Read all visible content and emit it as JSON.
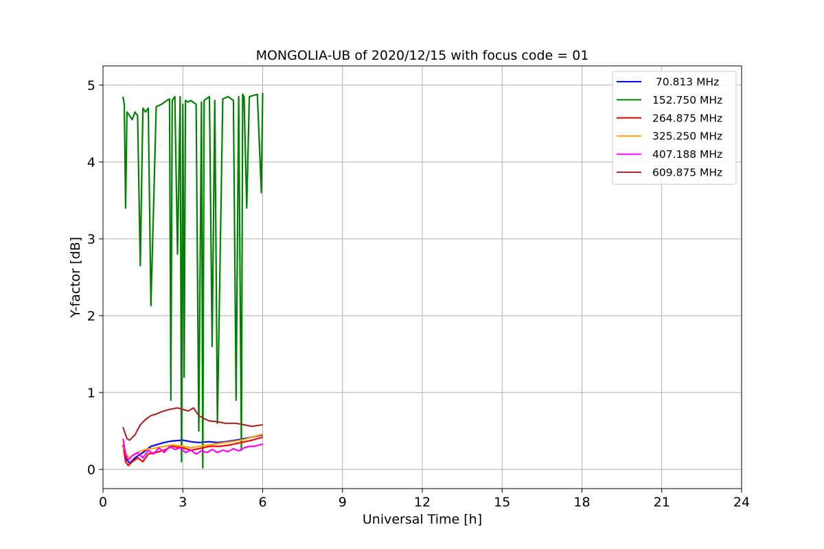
{
  "chart_data": {
    "type": "line",
    "title": "MONGOLIA-UB of 2020/12/15 with focus code = 01",
    "xlabel": "Universal Time [h]",
    "ylabel": "Y-factor [dB]",
    "xlim": [
      0,
      24
    ],
    "ylim": [
      -0.25,
      5.25
    ],
    "xticks": [
      0,
      3,
      6,
      9,
      12,
      15,
      18,
      21,
      24
    ],
    "yticks": [
      0,
      1,
      2,
      3,
      4,
      5
    ],
    "grid": true,
    "legend_position": "top-right",
    "series": [
      {
        "name": " 70.813 MHz",
        "color": "#0000ff",
        "x": [
          0.75,
          0.9,
          1.0,
          1.2,
          1.5,
          1.8,
          2.0,
          2.3,
          2.6,
          3.0,
          3.3,
          3.6,
          4.0,
          4.3,
          4.6,
          5.0,
          5.3,
          5.6,
          6.0
        ],
        "y": [
          0.3,
          0.12,
          0.08,
          0.15,
          0.22,
          0.3,
          0.32,
          0.35,
          0.37,
          0.38,
          0.36,
          0.35,
          0.36,
          0.35,
          0.36,
          0.38,
          0.4,
          0.42,
          0.45
        ]
      },
      {
        "name": "152.750 MHz",
        "color": "#008000",
        "x": [
          0.75,
          0.8,
          0.85,
          0.9,
          1.0,
          1.1,
          1.2,
          1.3,
          1.4,
          1.5,
          1.6,
          1.7,
          1.8,
          2.0,
          2.2,
          2.4,
          2.5,
          2.55,
          2.6,
          2.7,
          2.8,
          2.9,
          2.95,
          3.0,
          3.05,
          3.1,
          3.2,
          3.3,
          3.5,
          3.6,
          3.7,
          3.75,
          3.8,
          4.0,
          4.1,
          4.2,
          4.3,
          4.5,
          4.7,
          4.9,
          5.0,
          5.1,
          5.2,
          5.25,
          5.3,
          5.4,
          5.5,
          5.6,
          5.8,
          5.95,
          6.0
        ],
        "y": [
          4.85,
          4.75,
          3.4,
          4.65,
          4.6,
          4.55,
          4.65,
          4.6,
          2.65,
          4.7,
          4.65,
          4.7,
          2.13,
          4.72,
          4.75,
          4.8,
          4.82,
          0.9,
          4.8,
          4.85,
          2.8,
          4.85,
          0.1,
          4.75,
          1.2,
          4.8,
          4.78,
          4.8,
          4.75,
          0.5,
          4.78,
          0.02,
          4.8,
          4.85,
          1.6,
          4.8,
          0.6,
          4.82,
          4.85,
          4.8,
          0.9,
          4.85,
          0.25,
          4.88,
          4.85,
          3.4,
          4.85,
          4.86,
          4.88,
          3.6,
          4.9
        ]
      },
      {
        "name": "264.875 MHz",
        "color": "#ff0000",
        "x": [
          0.75,
          0.85,
          0.95,
          1.1,
          1.3,
          1.5,
          1.7,
          2.0,
          2.3,
          2.6,
          3.0,
          3.3,
          3.6,
          4.0,
          4.4,
          4.8,
          5.2,
          5.6,
          6.0
        ],
        "y": [
          0.32,
          0.1,
          0.05,
          0.1,
          0.15,
          0.1,
          0.2,
          0.22,
          0.25,
          0.3,
          0.28,
          0.25,
          0.27,
          0.3,
          0.3,
          0.32,
          0.35,
          0.38,
          0.42
        ]
      },
      {
        "name": "325.250 MHz",
        "color": "#ffa500",
        "x": [
          0.75,
          0.9,
          1.0,
          1.3,
          1.6,
          2.0,
          2.3,
          2.6,
          3.0,
          3.3,
          3.6,
          4.0,
          4.4,
          4.8,
          5.2,
          5.6,
          6.0
        ],
        "y": [
          0.3,
          0.18,
          0.15,
          0.22,
          0.26,
          0.28,
          0.3,
          0.32,
          0.3,
          0.28,
          0.3,
          0.32,
          0.34,
          0.36,
          0.38,
          0.42,
          0.46
        ]
      },
      {
        "name": "407.188 MHz",
        "color": "#ff00ff",
        "x": [
          0.75,
          0.85,
          0.95,
          1.1,
          1.3,
          1.5,
          1.7,
          1.9,
          2.1,
          2.3,
          2.5,
          2.7,
          2.9,
          3.1,
          3.3,
          3.5,
          3.7,
          3.9,
          4.1,
          4.3,
          4.5,
          4.7,
          4.9,
          5.1,
          5.3,
          5.5,
          5.7,
          6.0
        ],
        "y": [
          0.4,
          0.2,
          0.12,
          0.18,
          0.22,
          0.15,
          0.25,
          0.2,
          0.28,
          0.22,
          0.3,
          0.26,
          0.28,
          0.22,
          0.25,
          0.2,
          0.24,
          0.22,
          0.26,
          0.22,
          0.25,
          0.23,
          0.27,
          0.24,
          0.28,
          0.3,
          0.3,
          0.33
        ]
      },
      {
        "name": "609.875 MHz",
        "color": "#a52a2a",
        "x": [
          0.75,
          0.9,
          1.0,
          1.2,
          1.4,
          1.6,
          1.8,
          2.0,
          2.2,
          2.5,
          2.8,
          3.0,
          3.2,
          3.4,
          3.6,
          3.8,
          4.0,
          4.3,
          4.6,
          5.0,
          5.3,
          5.6,
          6.0
        ],
        "y": [
          0.55,
          0.4,
          0.38,
          0.45,
          0.58,
          0.65,
          0.7,
          0.72,
          0.75,
          0.78,
          0.8,
          0.78,
          0.76,
          0.8,
          0.7,
          0.66,
          0.63,
          0.62,
          0.6,
          0.6,
          0.58,
          0.56,
          0.58
        ]
      }
    ]
  }
}
